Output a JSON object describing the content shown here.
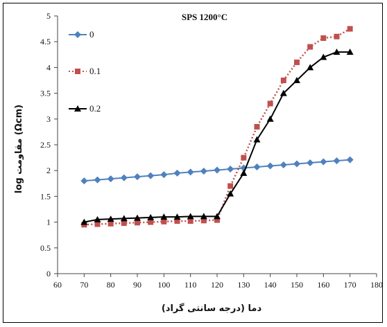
{
  "chart_data": {
    "type": "line",
    "title": "SPS 1200°C",
    "xlabel": "دما (درجه سانتی گراد)",
    "ylabel": "log مقاومت (Ωcm)",
    "xlim": [
      60,
      180
    ],
    "ylim": [
      0,
      5
    ],
    "xticks": [
      "60",
      "70",
      "80",
      "90",
      "100",
      "110",
      "120",
      "130",
      "140",
      "150",
      "160",
      "170",
      "180"
    ],
    "yticks": [
      "0",
      "0.5",
      "1",
      "1.5",
      "2",
      "2.5",
      "3",
      "3.5",
      "4",
      "4.5",
      "5"
    ],
    "grid": false,
    "legend_position": "top-left",
    "x": [
      70,
      75,
      80,
      85,
      90,
      95,
      100,
      105,
      110,
      115,
      120,
      125,
      130,
      135,
      140,
      145,
      150,
      155,
      160,
      165,
      170
    ],
    "series": [
      {
        "name": "0",
        "color": "#4f81bd",
        "marker": "diamond",
        "line": "solid",
        "values": [
          1.8,
          1.82,
          1.84,
          1.86,
          1.88,
          1.9,
          1.92,
          1.95,
          1.97,
          1.99,
          2.01,
          2.03,
          2.05,
          2.07,
          2.09,
          2.11,
          2.13,
          2.15,
          2.17,
          2.19,
          2.21
        ]
      },
      {
        "name": "0.1",
        "color": "#c0504d",
        "marker": "square",
        "line": "dotted",
        "values": [
          0.95,
          0.96,
          0.97,
          0.98,
          0.99,
          1.0,
          1.01,
          1.02,
          1.02,
          1.03,
          1.04,
          1.7,
          2.25,
          2.85,
          3.3,
          3.75,
          4.1,
          4.4,
          4.57,
          4.6,
          4.75
        ]
      },
      {
        "name": "0.2",
        "color": "#000000",
        "marker": "triangle",
        "line": "solid",
        "values": [
          1.0,
          1.05,
          1.06,
          1.07,
          1.08,
          1.09,
          1.1,
          1.1,
          1.11,
          1.11,
          1.11,
          1.55,
          1.95,
          2.6,
          3.0,
          3.5,
          3.75,
          4.0,
          4.2,
          4.3,
          4.3
        ]
      }
    ]
  }
}
